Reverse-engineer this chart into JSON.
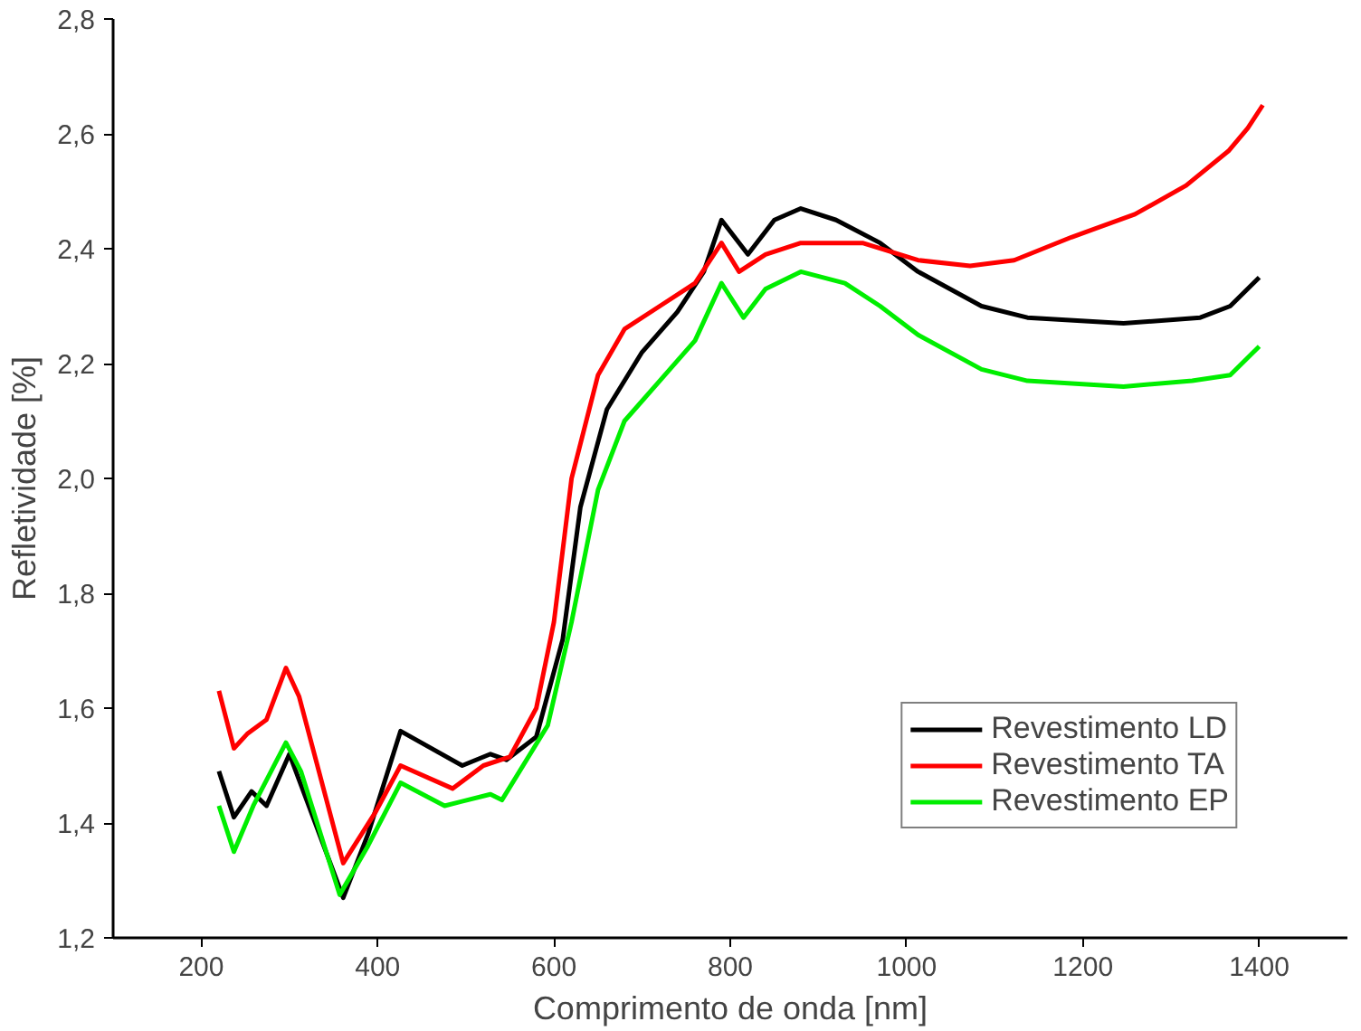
{
  "chart_data": {
    "type": "line",
    "xlabel": "Comprimento de onda [nm]",
    "ylabel": "Refletividade [%]",
    "xlim": [
      100,
      1500
    ],
    "ylim": [
      1.2,
      2.8
    ],
    "xticks": [
      200,
      400,
      600,
      800,
      1000,
      1200,
      1400
    ],
    "yticks": [
      {
        "value": 1.2,
        "label": "1,2"
      },
      {
        "value": 1.4,
        "label": "1,4"
      },
      {
        "value": 1.6,
        "label": "1,6"
      },
      {
        "value": 1.8,
        "label": "1,8"
      },
      {
        "value": 2.0,
        "label": "2,0"
      },
      {
        "value": 2.2,
        "label": "2,2"
      },
      {
        "value": 2.4,
        "label": "2,4"
      },
      {
        "value": 2.6,
        "label": "2,6"
      },
      {
        "value": 2.8,
        "label": "2,8"
      }
    ],
    "grid": false,
    "legend": "bottom right",
    "marker": "none",
    "line_style": "solid",
    "series": [
      {
        "name": "Revestimento LD",
        "color": "#000000",
        "x": [
          220,
          237,
          257,
          274,
          300,
          317,
          361,
          389,
          426,
          496,
          528,
          546,
          580,
          610,
          630,
          660,
          700,
          740,
          770,
          790,
          820,
          850,
          880,
          920,
          970,
          1013,
          1085,
          1137,
          1246,
          1333,
          1367,
          1400
        ],
        "values": [
          1.49,
          1.41,
          1.455,
          1.43,
          1.52,
          1.45,
          1.27,
          1.38,
          1.56,
          1.5,
          1.52,
          1.51,
          1.55,
          1.72,
          1.95,
          2.12,
          2.22,
          2.29,
          2.36,
          2.45,
          2.39,
          2.45,
          2.47,
          2.45,
          2.41,
          2.36,
          2.3,
          2.28,
          2.27,
          2.28,
          2.3,
          2.35
        ]
      },
      {
        "name": "Revestimento TA",
        "color": "#ff0000",
        "x": [
          220,
          237,
          252,
          274,
          296,
          311,
          361,
          398,
          426,
          485,
          520,
          550,
          580,
          600,
          620,
          650,
          680,
          720,
          760,
          790,
          810,
          840,
          880,
          950,
          1013,
          1072,
          1122,
          1187,
          1259,
          1317,
          1365,
          1387,
          1404
        ],
        "values": [
          1.63,
          1.53,
          1.555,
          1.58,
          1.67,
          1.62,
          1.33,
          1.42,
          1.5,
          1.46,
          1.5,
          1.515,
          1.6,
          1.75,
          2.0,
          2.18,
          2.26,
          2.3,
          2.34,
          2.41,
          2.36,
          2.39,
          2.41,
          2.41,
          2.38,
          2.37,
          2.38,
          2.42,
          2.46,
          2.51,
          2.57,
          2.61,
          2.65
        ]
      },
      {
        "name": "Revestimento EP",
        "color": "#00ee00",
        "x": [
          220,
          237,
          259,
          296,
          313,
          357,
          389,
          426,
          476,
          528,
          541,
          593,
          620,
          650,
          680,
          720,
          760,
          790,
          815,
          840,
          880,
          930,
          970,
          1013,
          1085,
          1137,
          1246,
          1324,
          1367,
          1400
        ],
        "values": [
          1.43,
          1.35,
          1.43,
          1.54,
          1.49,
          1.275,
          1.36,
          1.47,
          1.43,
          1.45,
          1.44,
          1.57,
          1.75,
          1.98,
          2.1,
          2.17,
          2.24,
          2.34,
          2.28,
          2.33,
          2.36,
          2.34,
          2.3,
          2.25,
          2.19,
          2.17,
          2.16,
          2.17,
          2.18,
          2.23
        ]
      }
    ]
  }
}
